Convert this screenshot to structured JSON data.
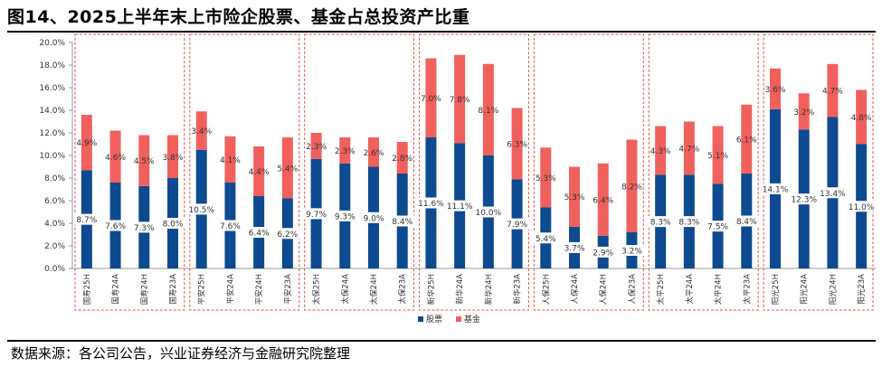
{
  "title": "图14、2025上半年末上市险企股票、基金占总投资产比重",
  "source": "数据来源：各公司公告，兴业证券经济与金融研究院整理",
  "colors": {
    "stock": "#0d4a8f",
    "fund": "#f0615e",
    "group_box": "#e0534a",
    "axis": "#999999"
  },
  "chart_data": {
    "type": "bar",
    "stacked": true,
    "title": "",
    "xlabel": "",
    "ylabel": "",
    "ylim": [
      0,
      20
    ],
    "y_ticks": [
      "0.0%",
      "2.0%",
      "4.0%",
      "6.0%",
      "8.0%",
      "10.0%",
      "12.0%",
      "14.0%",
      "16.0%",
      "18.0%",
      "20.0%"
    ],
    "grid": false,
    "legend_position": "bottom",
    "groups": [
      [
        "国寿25H",
        "国寿24A",
        "国寿24H",
        "国寿23A"
      ],
      [
        "平安25H",
        "平安24A",
        "平安24H",
        "平安23A"
      ],
      [
        "太保25H",
        "太保24A",
        "太保24H",
        "太保23A"
      ],
      [
        "新华25H",
        "新华24A",
        "新华24H",
        "新华23A"
      ],
      [
        "人保25H",
        "人保24A",
        "人保24H",
        "人保23A"
      ],
      [
        "太平25H",
        "太平24A",
        "太平24H",
        "太平23A"
      ],
      [
        "阳光25H",
        "阳光24A",
        "阳光24H",
        "阳光23A"
      ]
    ],
    "categories": [
      "国寿25H",
      "国寿24A",
      "国寿24H",
      "国寿23A",
      "平安25H",
      "平安24A",
      "平安24H",
      "平安23A",
      "太保25H",
      "太保24A",
      "太保24H",
      "太保23A",
      "新华25H",
      "新华24A",
      "新华24H",
      "新华23A",
      "人保25H",
      "人保24A",
      "人保24H",
      "人保23A",
      "太平25H",
      "太平24A",
      "太平24H",
      "太平23A",
      "阳光25H",
      "阳光24A",
      "阳光24H",
      "阳光23A"
    ],
    "series": [
      {
        "name": "股票",
        "color_key": "stock",
        "values": [
          8.7,
          7.6,
          7.3,
          8.0,
          10.5,
          7.6,
          6.4,
          6.2,
          9.7,
          9.3,
          9.0,
          8.4,
          11.6,
          11.1,
          10.0,
          7.9,
          5.4,
          3.7,
          2.9,
          3.2,
          8.3,
          8.3,
          7.5,
          8.4,
          14.1,
          12.3,
          13.4,
          11.0
        ],
        "labels": [
          "8.7%",
          "7.6%",
          "7.3%",
          "8.0%",
          "10.5%",
          "7.6%",
          "6.4%",
          "6.2%",
          "9.7%",
          "9.3%",
          "9.0%",
          "8.4%",
          "11.6%",
          "11.1%",
          "10.0%",
          "7.9%",
          "5.4%",
          "3.7%",
          "2.9%",
          "3.2%",
          "8.3%",
          "8.3%",
          "7.5%",
          "8.4%",
          "14.1%",
          "12.3%",
          "13.4%",
          "11.0%"
        ]
      },
      {
        "name": "基金",
        "color_key": "fund",
        "values": [
          4.9,
          4.6,
          4.5,
          3.8,
          3.4,
          4.1,
          4.4,
          5.4,
          2.3,
          2.3,
          2.6,
          2.8,
          7.0,
          7.8,
          8.1,
          6.3,
          5.3,
          5.3,
          6.4,
          8.2,
          4.3,
          4.7,
          5.1,
          6.1,
          3.6,
          3.2,
          4.7,
          4.8
        ],
        "labels": [
          "4.9%",
          "4.6%",
          "4.5%",
          "3.8%",
          "3.4%",
          "4.1%",
          "4.4%",
          "5.4%",
          "2.3%",
          "2.3%",
          "2.6%",
          "2.8%",
          "7.0%",
          "7.8%",
          "8.1%",
          "6.3%",
          "5.3%",
          "5.3%",
          "6.4%",
          "8.2%",
          "4.3%",
          "4.7%",
          "5.1%",
          "6.1%",
          "3.6%",
          "3.2%",
          "4.7%",
          "4.8%"
        ]
      }
    ]
  }
}
